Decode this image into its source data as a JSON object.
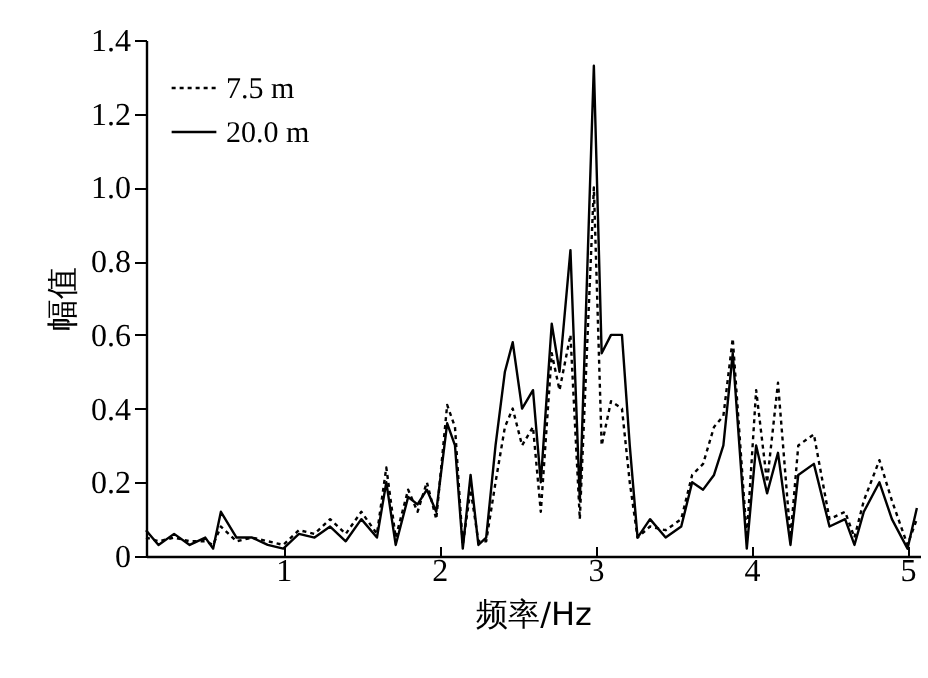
{
  "chart_data": {
    "type": "line",
    "xlabel": "频率/Hz",
    "ylabel": "幅值",
    "x": [
      0.12,
      0.2,
      0.3,
      0.4,
      0.5,
      0.55,
      0.6,
      0.7,
      0.8,
      0.9,
      1.0,
      1.1,
      1.2,
      1.3,
      1.4,
      1.5,
      1.6,
      1.66,
      1.72,
      1.8,
      1.86,
      1.92,
      1.98,
      2.05,
      2.1,
      2.15,
      2.2,
      2.25,
      2.3,
      2.36,
      2.42,
      2.47,
      2.53,
      2.6,
      2.65,
      2.72,
      2.77,
      2.84,
      2.9,
      2.99,
      3.04,
      3.1,
      3.17,
      3.22,
      3.27,
      3.35,
      3.45,
      3.55,
      3.62,
      3.69,
      3.76,
      3.82,
      3.88,
      3.97,
      4.03,
      4.1,
      4.17,
      4.25,
      4.3,
      4.4,
      4.5,
      4.6,
      4.66,
      4.72,
      4.82,
      4.9,
      5.0,
      5.06
    ],
    "series": [
      {
        "name": "7.5 m",
        "color": "#000000",
        "line_style": "dotted",
        "values": [
          0.05,
          0.04,
          0.05,
          0.04,
          0.04,
          0.03,
          0.08,
          0.04,
          0.05,
          0.04,
          0.03,
          0.07,
          0.06,
          0.1,
          0.06,
          0.12,
          0.06,
          0.24,
          0.05,
          0.18,
          0.12,
          0.2,
          0.1,
          0.41,
          0.35,
          0.03,
          0.18,
          0.04,
          0.04,
          0.2,
          0.35,
          0.4,
          0.3,
          0.35,
          0.12,
          0.55,
          0.45,
          0.6,
          0.1,
          1.0,
          0.3,
          0.42,
          0.4,
          0.2,
          0.05,
          0.08,
          0.07,
          0.1,
          0.22,
          0.25,
          0.35,
          0.38,
          0.59,
          0.05,
          0.45,
          0.2,
          0.47,
          0.05,
          0.3,
          0.33,
          0.1,
          0.12,
          0.05,
          0.15,
          0.26,
          0.15,
          0.03,
          0.1
        ]
      },
      {
        "name": "20.0 m",
        "color": "#000000",
        "line_style": "solid",
        "values": [
          0.07,
          0.03,
          0.06,
          0.03,
          0.05,
          0.02,
          0.12,
          0.05,
          0.05,
          0.03,
          0.02,
          0.06,
          0.05,
          0.08,
          0.04,
          0.1,
          0.05,
          0.2,
          0.03,
          0.16,
          0.14,
          0.18,
          0.12,
          0.36,
          0.3,
          0.02,
          0.22,
          0.03,
          0.05,
          0.3,
          0.5,
          0.58,
          0.4,
          0.45,
          0.2,
          0.63,
          0.5,
          0.83,
          0.15,
          1.33,
          0.55,
          0.6,
          0.6,
          0.3,
          0.05,
          0.1,
          0.05,
          0.08,
          0.2,
          0.18,
          0.22,
          0.3,
          0.55,
          0.02,
          0.3,
          0.17,
          0.28,
          0.03,
          0.22,
          0.25,
          0.08,
          0.1,
          0.03,
          0.12,
          0.2,
          0.1,
          0.02,
          0.13
        ]
      }
    ],
    "xlim": [
      0.12,
      5.08
    ],
    "xticks": [
      1,
      2,
      3,
      4,
      5
    ],
    "ylim": [
      0,
      1.4
    ],
    "yticks": [
      0,
      0.2,
      0.4,
      0.6,
      0.8,
      {
        "value": 1,
        "label": "1.0"
      },
      1.2,
      1.4
    ],
    "grid": false,
    "legend": "top left",
    "marker": "none"
  }
}
